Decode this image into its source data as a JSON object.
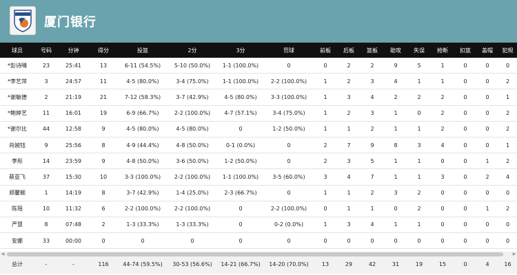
{
  "header": {
    "team_name": "厦门银行",
    "logo_text": "EGRETS"
  },
  "table": {
    "columns": [
      "球员",
      "号码",
      "分钟",
      "得分",
      "投篮",
      "2分",
      "3分",
      "罚球",
      "前板",
      "后板",
      "篮板",
      "助攻",
      "失误",
      "抢断",
      "扣篮",
      "盖帽",
      "犯规"
    ],
    "rows": [
      [
        "*彭诗晴",
        "23",
        "25:41",
        "13",
        "6-11 (54.5%)",
        "5-10 (50.0%)",
        "1-1 (100.0%)",
        "0",
        "0",
        "2",
        "2",
        "9",
        "5",
        "1",
        "0",
        "0",
        "0"
      ],
      [
        "*李艺萍",
        "3",
        "24:57",
        "11",
        "4-5 (80.0%)",
        "3-4 (75.0%)",
        "1-1 (100.0%)",
        "2-2 (100.0%)",
        "1",
        "2",
        "3",
        "4",
        "1",
        "1",
        "0",
        "0",
        "2"
      ],
      [
        "*谢敏德",
        "2",
        "21:19",
        "21",
        "7-12 (58.3%)",
        "3-7 (42.9%)",
        "4-5 (80.0%)",
        "3-3 (100.0%)",
        "1",
        "3",
        "4",
        "2",
        "2",
        "2",
        "0",
        "0",
        "1"
      ],
      [
        "*鲍婷艺",
        "11",
        "16:01",
        "19",
        "6-9 (66.7%)",
        "2-2 (100.0%)",
        "4-7 (57.1%)",
        "3-4 (75.0%)",
        "1",
        "2",
        "3",
        "1",
        "0",
        "2",
        "0",
        "0",
        "2"
      ],
      [
        "*谢尔比",
        "44",
        "12:58",
        "9",
        "4-5 (80.0%)",
        "4-5 (80.0%)",
        "0",
        "1-2 (50.0%)",
        "1",
        "1",
        "2",
        "1",
        "1",
        "2",
        "0",
        "0",
        "2"
      ],
      [
        "肖婉钰",
        "9",
        "25:56",
        "8",
        "4-9 (44.4%)",
        "4-8 (50.0%)",
        "0-1 (0.0%)",
        "0",
        "2",
        "7",
        "9",
        "8",
        "3",
        "4",
        "0",
        "0",
        "1"
      ],
      [
        "李彤",
        "14",
        "23:59",
        "9",
        "4-8 (50.0%)",
        "3-6 (50.0%)",
        "1-2 (50.0%)",
        "0",
        "2",
        "3",
        "5",
        "1",
        "1",
        "0",
        "0",
        "1",
        "2"
      ],
      [
        "蔡亚飞",
        "37",
        "15:30",
        "10",
        "3-3 (100.0%)",
        "2-2 (100.0%)",
        "1-1 (100.0%)",
        "3-5 (60.0%)",
        "3",
        "4",
        "7",
        "1",
        "1",
        "3",
        "0",
        "2",
        "4"
      ],
      [
        "郑馨颖",
        "1",
        "14:19",
        "8",
        "3-7 (42.9%)",
        "1-4 (25.0%)",
        "2-3 (66.7%)",
        "0",
        "1",
        "1",
        "2",
        "3",
        "2",
        "0",
        "0",
        "0",
        "0"
      ],
      [
        "陈瑶",
        "10",
        "11:32",
        "6",
        "2-2 (100.0%)",
        "2-2 (100.0%)",
        "0",
        "2-2 (100.0%)",
        "0",
        "1",
        "1",
        "0",
        "2",
        "0",
        "0",
        "1",
        "2"
      ],
      [
        "严慧",
        "8",
        "07:48",
        "2",
        "1-3 (33.3%)",
        "1-3 (33.3%)",
        "0",
        "0-2 (0.0%)",
        "1",
        "3",
        "4",
        "1",
        "1",
        "0",
        "0",
        "0",
        "0"
      ],
      [
        "安娜",
        "33",
        "00:00",
        "0",
        "0",
        "0",
        "0",
        "0",
        "0",
        "0",
        "0",
        "0",
        "0",
        "0",
        "0",
        "0",
        "0"
      ]
    ],
    "total": [
      "总计",
      "-",
      "-",
      "116",
      "44-74 (59.5%)",
      "30-53 (56.6%)",
      "14-21 (66.7%)",
      "14-20 (70.0%)",
      "13",
      "29",
      "42",
      "31",
      "19",
      "15",
      "0",
      "4",
      "16"
    ]
  }
}
